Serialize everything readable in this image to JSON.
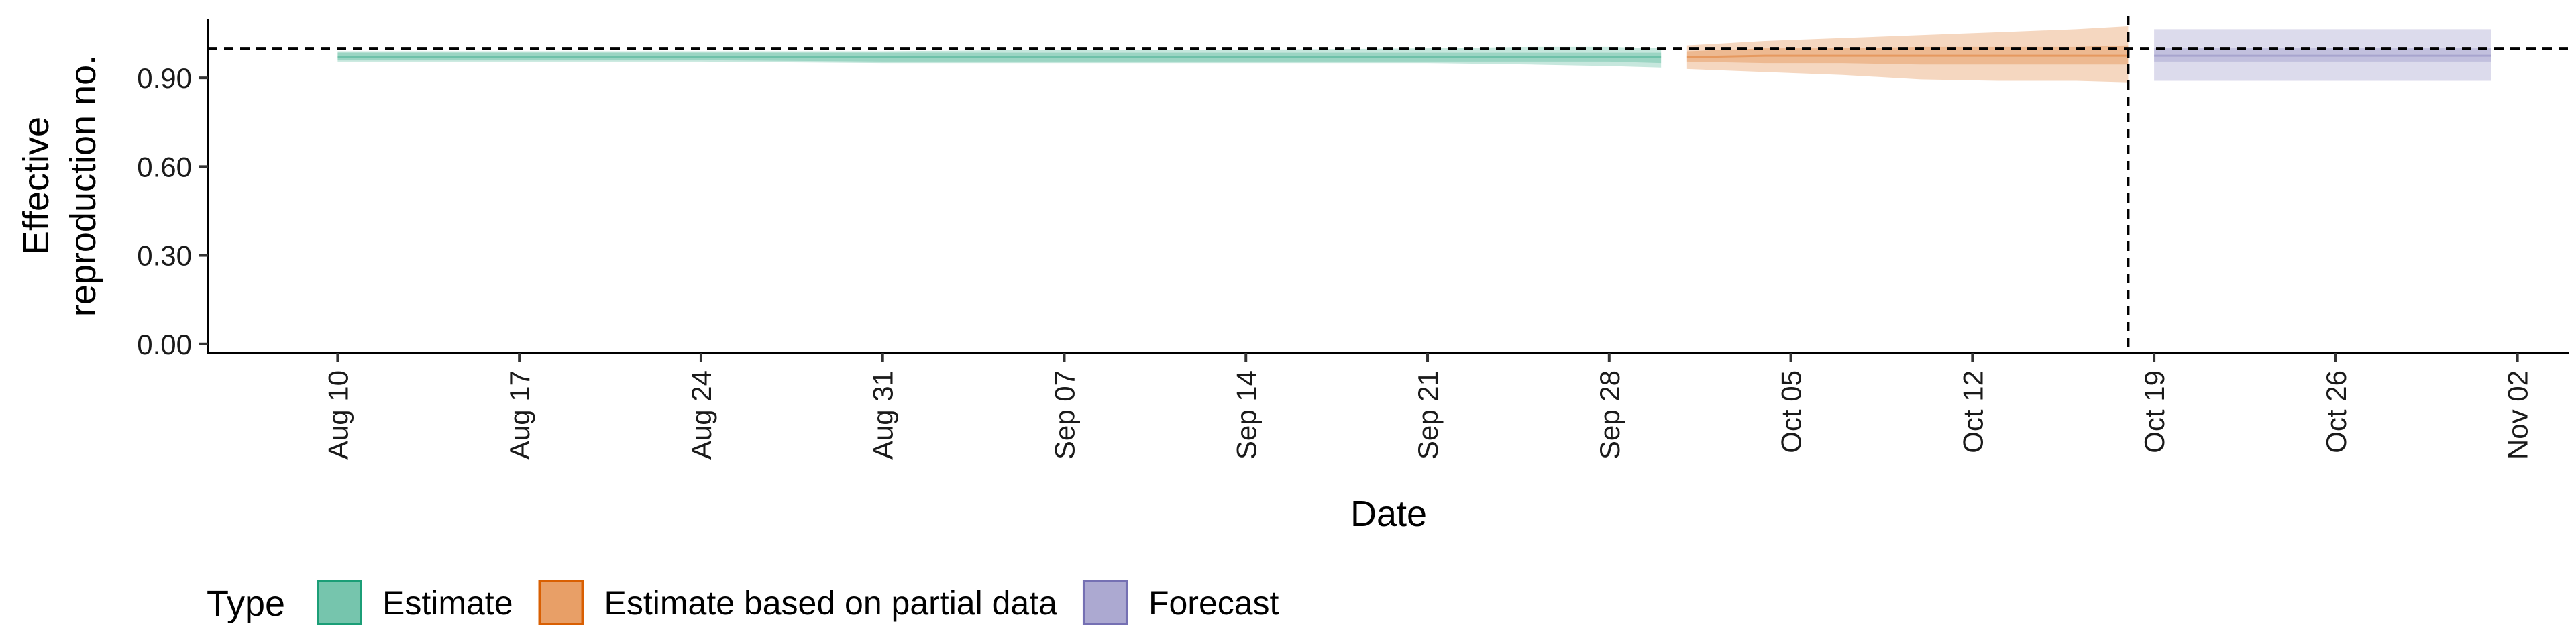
{
  "chart_data": {
    "type": "area",
    "xlabel": "Date",
    "ylabel_lines": [
      "Effective",
      "reproduction no."
    ],
    "y_ticks": [
      "0.00",
      "0.30",
      "0.60",
      "0.90"
    ],
    "y_tick_values": [
      0.0,
      0.3,
      0.6,
      0.9
    ],
    "ylim": [
      -0.03,
      1.1
    ],
    "x_ticks": [
      "Aug 10",
      "Aug 17",
      "Aug 24",
      "Aug 31",
      "Sep 07",
      "Sep 14",
      "Sep 21",
      "Sep 28",
      "Oct 05",
      "Oct 12",
      "Oct 19",
      "Oct 26",
      "Nov 02"
    ],
    "x_tick_dates": [
      "2020-08-10",
      "2020-08-17",
      "2020-08-24",
      "2020-08-31",
      "2020-09-07",
      "2020-09-14",
      "2020-09-21",
      "2020-09-28",
      "2020-10-05",
      "2020-10-12",
      "2020-10-19",
      "2020-10-26",
      "2020-11-02"
    ],
    "xlim": [
      "2020-08-05",
      "2020-11-04"
    ],
    "reference_line_y": 1.0,
    "forecast_date": "2020-10-18",
    "legend": {
      "title": "Type",
      "placement": "bottom",
      "items": [
        "Estimate",
        "Estimate based on partial data",
        "Forecast"
      ]
    },
    "colors": {
      "Estimate": "#1b9e77",
      "Estimate based on partial data": "#d95f02",
      "Forecast": "#7570b3"
    },
    "series": [
      {
        "name": "Estimate",
        "x": [
          "2020-08-10",
          "2020-08-17",
          "2020-08-24",
          "2020-08-31",
          "2020-09-07",
          "2020-09-14",
          "2020-09-21",
          "2020-09-25",
          "2020-09-28",
          "2020-09-30"
        ],
        "median": [
          0.97,
          0.97,
          0.97,
          0.97,
          0.97,
          0.97,
          0.97,
          0.97,
          0.97,
          0.97
        ],
        "inner_lower": [
          0.96,
          0.96,
          0.96,
          0.955,
          0.955,
          0.955,
          0.955,
          0.955,
          0.955,
          0.95
        ],
        "inner_upper": [
          0.985,
          0.985,
          0.985,
          0.985,
          0.985,
          0.985,
          0.985,
          0.985,
          0.985,
          0.985
        ],
        "lower": [
          0.955,
          0.955,
          0.955,
          0.95,
          0.95,
          0.95,
          0.95,
          0.945,
          0.94,
          0.935
        ],
        "upper": [
          0.99,
          0.99,
          0.99,
          0.99,
          0.995,
          0.995,
          1.0,
          1.005,
          1.005,
          1.0
        ]
      },
      {
        "name": "Estimate based on partial data",
        "x": [
          "2020-10-01",
          "2020-10-04",
          "2020-10-07",
          "2020-10-10",
          "2020-10-13",
          "2020-10-16",
          "2020-10-18"
        ],
        "median": [
          0.97,
          0.975,
          0.975,
          0.975,
          0.975,
          0.975,
          0.975
        ],
        "inner_lower": [
          0.955,
          0.95,
          0.95,
          0.945,
          0.945,
          0.945,
          0.945
        ],
        "inner_upper": [
          0.99,
          1.0,
          1.0,
          1.005,
          1.005,
          1.005,
          1.01
        ],
        "lower": [
          0.93,
          0.92,
          0.91,
          0.895,
          0.89,
          0.89,
          0.885
        ],
        "upper": [
          1.01,
          1.025,
          1.035,
          1.045,
          1.055,
          1.065,
          1.075
        ]
      },
      {
        "name": "Forecast",
        "x": [
          "2020-10-19",
          "2020-11-01"
        ],
        "median": [
          0.975,
          0.975
        ],
        "inner_lower": [
          0.955,
          0.955
        ],
        "inner_upper": [
          1.0,
          1.0
        ],
        "lower": [
          0.89,
          0.89
        ],
        "upper": [
          1.065,
          1.065
        ]
      }
    ]
  }
}
